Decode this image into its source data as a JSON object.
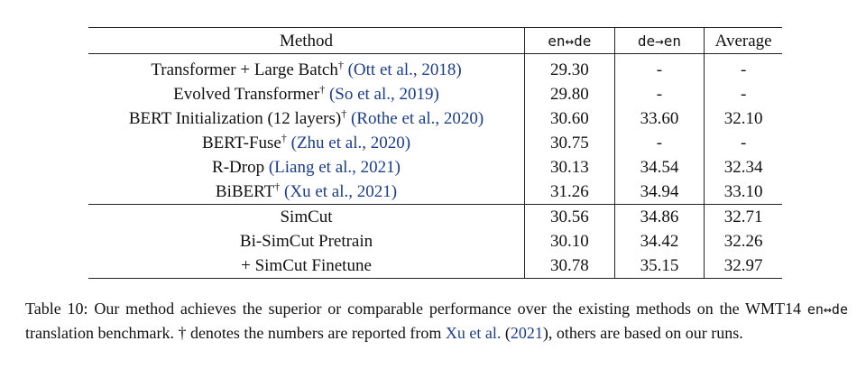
{
  "table": {
    "headers": [
      "Method",
      "en↔de",
      "de→en",
      "Average"
    ],
    "group1": [
      {
        "method": "Transformer + Large Batch",
        "dagger": "†",
        "cite": "(Ott et al., 2018)",
        "en_de": "29.30",
        "de_en": "-",
        "avg": "-"
      },
      {
        "method": "Evolved Transformer",
        "dagger": "†",
        "cite": "(So et al., 2019)",
        "en_de": "29.80",
        "de_en": "-",
        "avg": "-"
      },
      {
        "method": "BERT Initialization (12 layers)",
        "dagger": "†",
        "cite": "(Rothe et al., 2020)",
        "en_de": "30.60",
        "de_en": "33.60",
        "avg": "32.10"
      },
      {
        "method": "BERT-Fuse",
        "dagger": "†",
        "cite": "(Zhu et al., 2020)",
        "en_de": "30.75",
        "de_en": "-",
        "avg": "-"
      },
      {
        "method": "R-Drop",
        "dagger": "",
        "cite": "(Liang et al., 2021)",
        "en_de": "30.13",
        "de_en": "34.54",
        "avg": "32.34"
      },
      {
        "method": "BiBERT",
        "dagger": "†",
        "cite": "(Xu et al., 2021)",
        "en_de": "31.26",
        "de_en": "34.94",
        "avg": "33.10"
      }
    ],
    "group2": [
      {
        "method": "SimCut",
        "en_de": "30.56",
        "de_en": "34.86",
        "avg": "32.71"
      },
      {
        "method": "Bi-SimCut Pretrain",
        "en_de": "30.10",
        "de_en": "34.42",
        "avg": "32.26"
      },
      {
        "method": "+ SimCut Finetune",
        "en_de": "30.78",
        "de_en": "35.15",
        "avg": "32.97"
      }
    ]
  },
  "caption": {
    "part1": "Table 10: Our method achieves the superior or comparable performance over the existing methods on the WMT14",
    "mono": "en↔de",
    "part2": " translation benchmark. † denotes the numbers are reported from ",
    "cite_author": "Xu et al.",
    "cite_year": "2021",
    "part3": "), others are based on our runs."
  }
}
